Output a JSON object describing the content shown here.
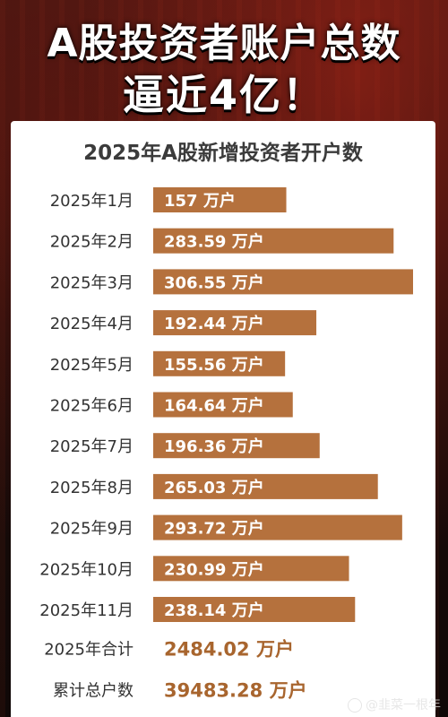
{
  "headline": {
    "line1": "A股投资者账户总数",
    "line2": "逼近4亿！"
  },
  "colors": {
    "bar": "#b5713d",
    "accent_text": "#a8652e",
    "label_text": "#333333",
    "bar_text": "#ffffff"
  },
  "chart_data": {
    "type": "bar",
    "orientation": "horizontal",
    "title": "2025年A股新增投资者开户数",
    "unit": "万户",
    "categories": [
      "2025年1月",
      "2025年2月",
      "2025年3月",
      "2025年4月",
      "2025年5月",
      "2025年6月",
      "2025年7月",
      "2025年8月",
      "2025年9月",
      "2025年10月",
      "2025年11月"
    ],
    "values": [
      157,
      283.59,
      306.55,
      192.44,
      155.56,
      164.64,
      196.36,
      265.03,
      293.72,
      230.99,
      238.14
    ],
    "value_labels": [
      "157",
      "283.59",
      "306.55",
      "192.44",
      "155.56",
      "164.64",
      "196.36",
      "265.03",
      "293.72",
      "230.99",
      "238.14"
    ],
    "xlim": [
      0,
      306.55
    ],
    "grid": false,
    "legend": "none"
  },
  "summary": [
    {
      "label": "2025年合计",
      "value": "2484.02",
      "unit": "万户"
    },
    {
      "label": "累计总户数",
      "value": "39483.28",
      "unit": "万户"
    }
  ],
  "watermark": "@韭菜一根年"
}
